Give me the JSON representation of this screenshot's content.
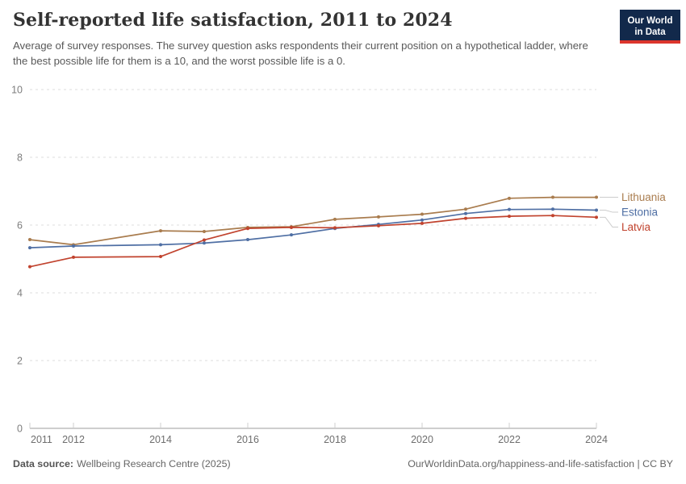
{
  "header": {
    "title": "Self-reported life satisfaction, 2011 to 2024",
    "subtitle": "Average of survey responses. The survey question asks respondents their current position on a hypothetical ladder, where the best possible life for them is a 10, and the worst possible life is a 0.",
    "logo": {
      "line1": "Our World",
      "line2": "in Data",
      "bg_color": "#12294B",
      "accent_color": "#DC352C"
    }
  },
  "chart_data": {
    "type": "line",
    "title": "Self-reported life satisfaction, 2011 to 2024",
    "xlabel": "",
    "ylabel": "",
    "x": [
      2011,
      2012,
      2014,
      2015,
      2016,
      2017,
      2018,
      2019,
      2020,
      2021,
      2022,
      2023,
      2024
    ],
    "x_note": "no data point for 2013",
    "xticks": [
      2011,
      2012,
      2014,
      2016,
      2018,
      2020,
      2022,
      2024
    ],
    "ylim": [
      0,
      10
    ],
    "yticks": [
      0,
      2,
      4,
      6,
      8,
      10
    ],
    "grid": "horizontal-dashed",
    "legend_position": "right-of-line-ends",
    "series": [
      {
        "name": "Lithuania",
        "color": "#A97C4E",
        "values": [
          5.57,
          5.42,
          5.83,
          5.81,
          5.93,
          5.95,
          6.17,
          6.24,
          6.32,
          6.47,
          6.79,
          6.82,
          6.82
        ]
      },
      {
        "name": "Estonia",
        "color": "#4F6FA4",
        "values": [
          5.33,
          5.38,
          5.42,
          5.47,
          5.57,
          5.71,
          5.9,
          6.02,
          6.15,
          6.34,
          6.46,
          6.47,
          6.44
        ]
      },
      {
        "name": "Latvia",
        "color": "#C1432E",
        "values": [
          4.77,
          5.05,
          5.07,
          5.56,
          5.9,
          5.93,
          5.92,
          5.98,
          6.05,
          6.2,
          6.26,
          6.28,
          6.23
        ]
      }
    ]
  },
  "footer": {
    "source_label": "Data source:",
    "source_text": "Wellbeing Research Centre (2025)",
    "attribution": "OurWorldinData.org/happiness-and-life-satisfaction | CC BY"
  }
}
